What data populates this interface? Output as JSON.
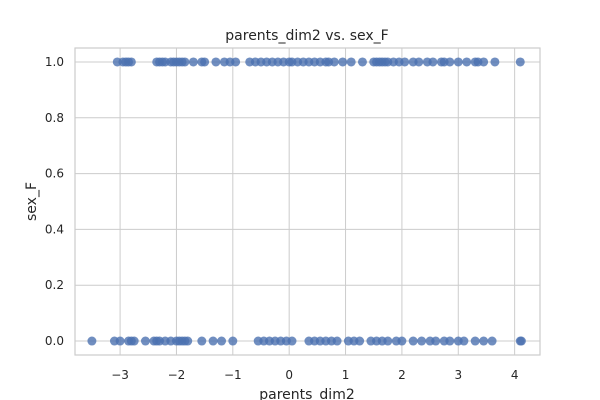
{
  "chart_data": {
    "type": "scatter",
    "title": "parents_dim2 vs. sex_F",
    "xlabel": "parents_dim2",
    "ylabel": "sex_F",
    "xlim": [
      -3.8,
      4.45
    ],
    "ylim": [
      -0.05,
      1.05
    ],
    "xticks": [
      -3,
      -2,
      -1,
      0,
      1,
      2,
      3,
      4
    ],
    "yticks": [
      0.0,
      0.2,
      0.4,
      0.6,
      0.8,
      1.0
    ],
    "xtick_labels": [
      "−3",
      "−2",
      "−1",
      "0",
      "1",
      "2",
      "3",
      "4"
    ],
    "ytick_labels": [
      "0.0",
      "0.2",
      "0.4",
      "0.6",
      "0.8",
      "1.0"
    ],
    "grid": true,
    "series_color": "#4c72b0",
    "series": [
      {
        "y": 1.0,
        "x": [
          -3.05,
          -2.95,
          -2.9,
          -2.85,
          -2.8,
          -2.35,
          -2.3,
          -2.25,
          -2.2,
          -2.1,
          -2.05,
          -2.0,
          -1.95,
          -1.9,
          -1.85,
          -1.7,
          -1.55,
          -1.5,
          -1.3,
          -1.15,
          -1.05,
          -0.95,
          -0.7,
          -0.6,
          -0.5,
          -0.4,
          -0.3,
          -0.2,
          -0.1,
          0.0,
          0.05,
          0.15,
          0.25,
          0.35,
          0.45,
          0.55,
          0.65,
          0.7,
          0.8,
          0.95,
          1.1,
          1.3,
          1.5,
          1.55,
          1.6,
          1.65,
          1.7,
          1.75,
          1.85,
          1.95,
          2.05,
          2.2,
          2.3,
          2.45,
          2.55,
          2.7,
          2.75,
          2.85,
          3.0,
          3.15,
          3.3,
          3.35,
          3.45,
          3.65,
          4.1
        ]
      },
      {
        "y": 0.0,
        "x": [
          -3.5,
          -3.1,
          -3.0,
          -2.85,
          -2.8,
          -2.75,
          -2.55,
          -2.4,
          -2.35,
          -2.3,
          -2.2,
          -2.1,
          -2.0,
          -1.95,
          -1.9,
          -1.85,
          -1.8,
          -1.55,
          -1.35,
          -1.2,
          -1.0,
          -0.55,
          -0.45,
          -0.35,
          -0.25,
          -0.15,
          -0.05,
          0.05,
          0.35,
          0.45,
          0.55,
          0.65,
          0.75,
          0.85,
          1.05,
          1.15,
          1.25,
          1.45,
          1.55,
          1.65,
          1.75,
          1.9,
          2.0,
          2.2,
          2.35,
          2.5,
          2.6,
          2.75,
          2.85,
          3.0,
          3.1,
          3.3,
          3.45,
          3.6,
          4.1,
          4.12
        ]
      }
    ]
  }
}
